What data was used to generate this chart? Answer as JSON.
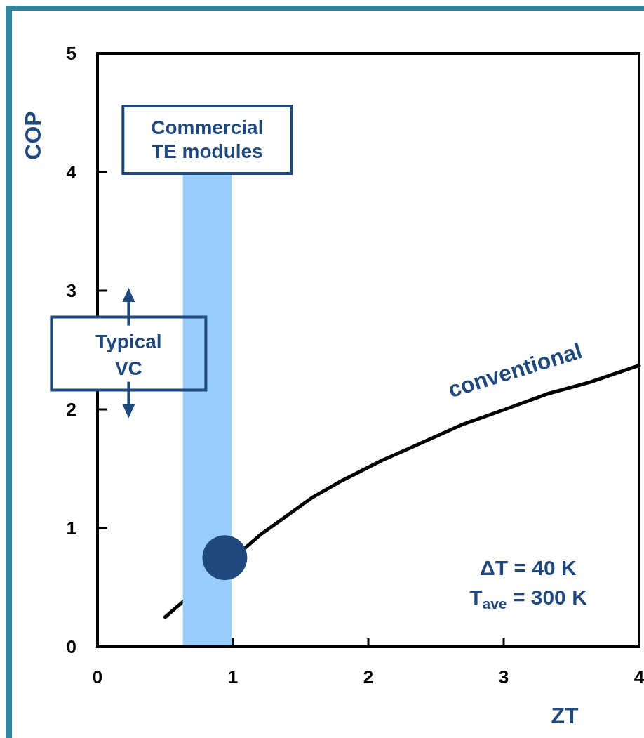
{
  "chart_data": {
    "type": "line",
    "xlabel": "ZT",
    "ylabel": "COP",
    "xlim": [
      0,
      4
    ],
    "ylim": [
      0,
      5
    ],
    "xticks": [
      0,
      1,
      2,
      3,
      4
    ],
    "yticks": [
      0,
      1,
      2,
      3,
      4,
      5
    ],
    "series": [
      {
        "name": "conventional",
        "color": "#000000",
        "x": [
          0.5,
          1.21,
          1.59,
          1.79,
          2.1,
          2.3,
          2.69,
          3.01,
          3.32,
          3.64,
          4.0
        ],
        "values": [
          0.25,
          0.95,
          1.26,
          1.39,
          1.57,
          1.67,
          1.87,
          2.0,
          2.13,
          2.23,
          2.37
        ]
      },
      {
        "type": "scatter",
        "marker": "circle",
        "color": "#1f497d",
        "x": [
          0.94
        ],
        "values": [
          0.75
        ]
      }
    ],
    "bands": [
      {
        "axis": "x",
        "from": 0.63,
        "to": 0.99,
        "label": "Commercial TE modules",
        "color": "#99ccff"
      }
    ],
    "annotations": [
      "Typical VC",
      "ΔT = 40 K",
      "T$_{ave}$ = 300 K"
    ]
  }
}
